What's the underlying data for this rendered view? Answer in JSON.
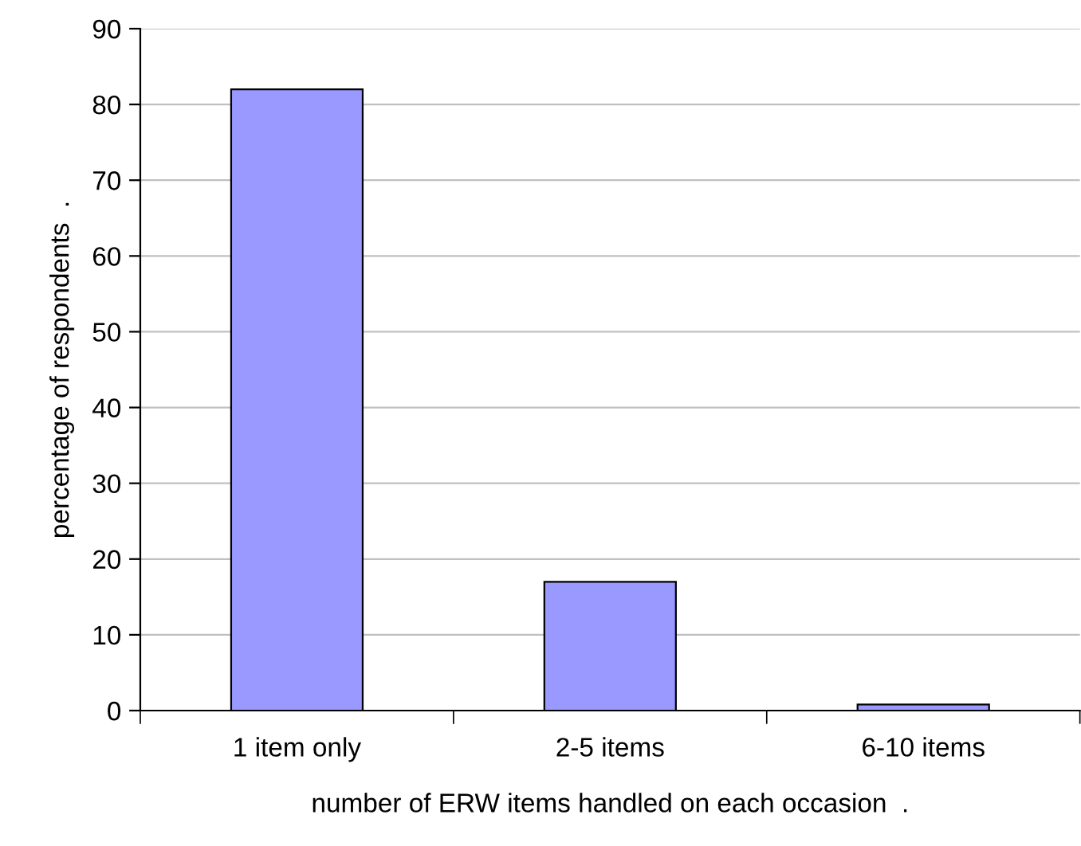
{
  "chart_data": {
    "type": "bar",
    "xlabel": "number of ERW items handled on each occasion  .",
    "ylabel": "percentage of respondents  .",
    "categories": [
      "1 item only",
      "2-5 items",
      "6-10 items"
    ],
    "values": [
      82,
      17,
      0.8
    ],
    "color": "#9999ff",
    "ylim": [
      0,
      90
    ],
    "yticks": [
      0,
      10,
      20,
      30,
      40,
      50,
      60,
      70,
      80,
      90
    ],
    "grid": "y",
    "legend": false
  }
}
